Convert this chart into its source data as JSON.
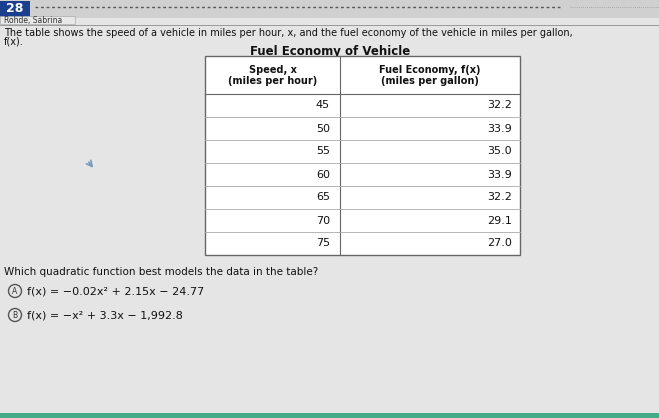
{
  "question_number": "28",
  "author": "Rohde, Sabrina",
  "description_line1": "The table shows the speed of a vehicle in miles per hour, x, and the fuel economy of the vehicle in miles per gallon,",
  "description_line2": "f(x).",
  "table_title": "Fuel Economy of Vehicle",
  "col1_header_line1": "Speed, x",
  "col1_header_line2": "(miles per hour)",
  "col2_header_line1": "Fuel Economy, f(x)",
  "col2_header_line2": "(miles per gallon)",
  "speed_values": [
    45,
    50,
    55,
    60,
    65,
    70,
    75
  ],
  "fuel_values": [
    "32.2",
    "33.9",
    "35.0",
    "33.9",
    "32.2",
    "29.1",
    "27.0"
  ],
  "question_text": "Which quadratic function best models the data in the table?",
  "option_A_text": "f(x) = −0.02x² + 2.15x − 24.77",
  "option_B_text": "f(x) = −x² + 3.3x − 1,992.8",
  "page_bg": "#d4d4d4",
  "content_bg": "#e8e8e8",
  "header_bar_color": "#1a3f8f",
  "table_bg": "#ffffff",
  "border_color": "#666666",
  "row_line_color": "#aaaaaa",
  "text_color": "#111111",
  "dotted_line_color": "#666666",
  "teal_strip": "#339966",
  "right_bg": "#c8c8c8"
}
